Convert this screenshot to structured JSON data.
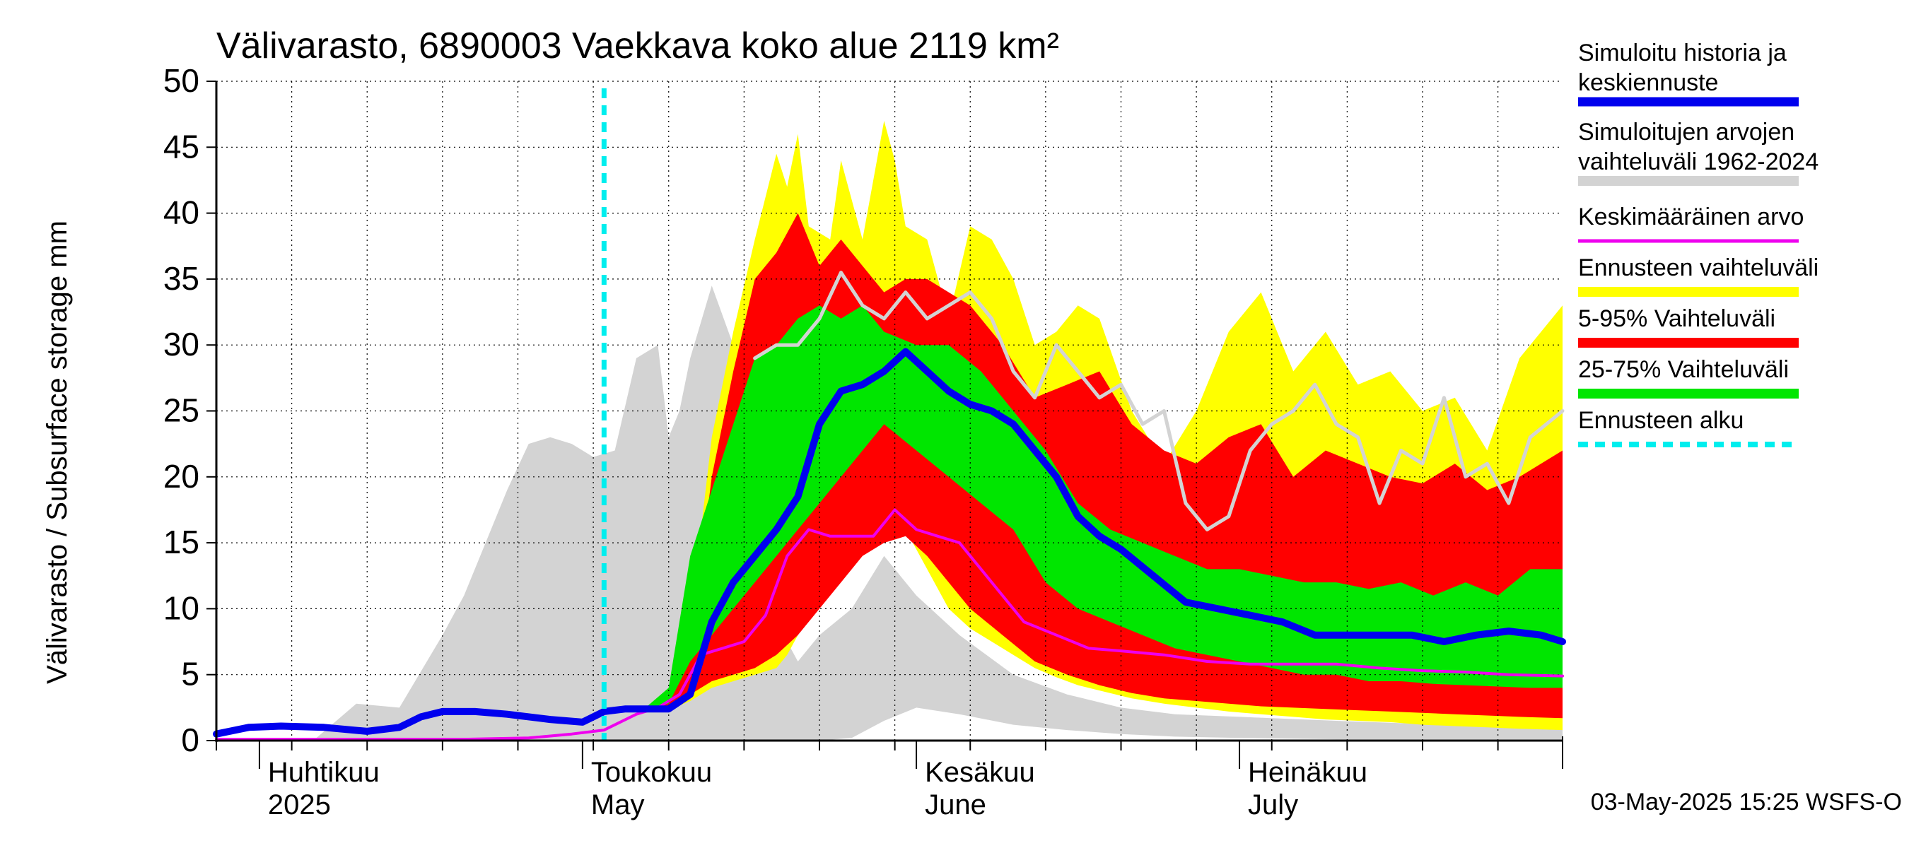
{
  "chart_data": {
    "type": "area",
    "title": "Välivarasto, 6890003 Vaekkava koko alue 2119 km²",
    "ylabel": "Välivarasto / Subsurface storage  mm",
    "xlabel": "",
    "ylim": [
      0,
      50
    ],
    "y_ticks": [
      "0",
      "5",
      "10",
      "15",
      "20",
      "25",
      "30",
      "35",
      "40",
      "45",
      "50"
    ],
    "x_range": [
      "2025-03-28",
      "2025-07-31"
    ],
    "grid": true,
    "legend_position": "right",
    "forecast_start": "2025-05-03",
    "month_labels": [
      {
        "date": "2025-04-01",
        "fi": "Huhtikuu",
        "en": "2025"
      },
      {
        "date": "2025-05-01",
        "fi": "Toukokuu",
        "en": "May"
      },
      {
        "date": "2025-06-01",
        "fi": "Kesäkuu",
        "en": "June"
      },
      {
        "date": "2025-07-01",
        "fi": "Heinäkuu",
        "en": "July"
      }
    ],
    "footer": "03-May-2025 15:25 WSFS-O",
    "colors": {
      "history_range": "#d3d3d3",
      "forecast_range": "#ffff00",
      "p5_95": "#ff0000",
      "p25_75": "#00e600",
      "median": "#0000ee",
      "mean": "#ee00ee",
      "forecast_start": "#00eeee",
      "grey_line": "#d3d3d3"
    },
    "legend": [
      {
        "label": "Simuloitu historia ja keskiennuste",
        "lines": [
          "Simuloitu historia ja",
          "keskiennuste"
        ],
        "color": "#0000ee",
        "style": "thick"
      },
      {
        "label": "Simuloitujen arvojen vaihteluväli 1962-2024",
        "lines": [
          "Simuloitujen arvojen",
          "vaihteluväli 1962-2024"
        ],
        "color": "#d3d3d3",
        "style": "band"
      },
      {
        "label": "Keskimääräinen arvo",
        "lines": [
          "Keskimääräinen arvo"
        ],
        "color": "#ee00ee",
        "style": "thin"
      },
      {
        "label": "Ennusteen vaihteluväli",
        "lines": [
          "Ennusteen vaihteluväli"
        ],
        "color": "#ffff00",
        "style": "band"
      },
      {
        "label": "5-95% Vaihteluväli",
        "lines": [
          "5-95% Vaihteluväli"
        ],
        "color": "#ff0000",
        "style": "band"
      },
      {
        "label": "25-75% Vaihteluväli",
        "lines": [
          "25-75% Vaihteluväli"
        ],
        "color": "#00e600",
        "style": "band"
      },
      {
        "label": "Ennusteen alku",
        "lines": [
          "Ennusteen alku"
        ],
        "color": "#00eeee",
        "style": "dashed"
      }
    ],
    "series": [
      {
        "key": "hist_range",
        "name": "Simuloitujen arvojen vaihteluväli 1962-2024",
        "x": [
          "2025-03-28",
          "2025-04-06",
          "2025-04-10",
          "2025-04-14",
          "2025-04-18",
          "2025-04-20",
          "2025-04-22",
          "2025-04-24",
          "2025-04-26",
          "2025-04-28",
          "2025-04-30",
          "2025-05-02",
          "2025-05-04",
          "2025-05-06",
          "2025-05-08",
          "2025-05-09",
          "2025-05-10",
          "2025-05-11",
          "2025-05-13",
          "2025-05-15",
          "2025-05-17",
          "2025-05-19",
          "2025-05-21",
          "2025-05-23",
          "2025-05-26",
          "2025-05-29",
          "2025-06-01",
          "2025-06-05",
          "2025-06-10",
          "2025-06-15",
          "2025-06-20",
          "2025-06-25",
          "2025-07-01",
          "2025-07-10",
          "2025-07-20",
          "2025-07-31"
        ],
        "low": [
          0,
          0,
          0,
          0,
          0,
          0,
          0,
          0,
          0,
          0,
          0,
          0,
          0,
          0,
          0,
          0,
          0,
          0,
          0,
          0,
          0,
          0,
          0,
          0,
          0.2,
          1.5,
          2.5,
          2.0,
          1.2,
          0.8,
          0.5,
          0.3,
          0.2,
          0.1,
          0.1,
          0.1
        ],
        "high": [
          0,
          0,
          2.8,
          2.5,
          8,
          11,
          15,
          19,
          22.5,
          23,
          22.5,
          21.5,
          22,
          29,
          30,
          23,
          25,
          29,
          34.5,
          30,
          20,
          9,
          6,
          8,
          10,
          14,
          11,
          8,
          5,
          3.5,
          2.5,
          2,
          1.8,
          1.5,
          1.2,
          1.0
        ]
      },
      {
        "key": "forecast_range",
        "name": "Ennusteen vaihteluväli",
        "x": [
          "2025-05-03",
          "2025-05-07",
          "2025-05-09",
          "2025-05-11",
          "2025-05-13",
          "2025-05-15",
          "2025-05-17",
          "2025-05-19",
          "2025-05-20",
          "2025-05-21",
          "2025-05-22",
          "2025-05-24",
          "2025-05-25",
          "2025-05-27",
          "2025-05-29",
          "2025-05-30",
          "2025-05-31",
          "2025-06-02",
          "2025-06-04",
          "2025-06-06",
          "2025-06-08",
          "2025-06-10",
          "2025-06-12",
          "2025-06-14",
          "2025-06-16",
          "2025-06-18",
          "2025-06-21",
          "2025-06-24",
          "2025-06-27",
          "2025-06-30",
          "2025-07-03",
          "2025-07-06",
          "2025-07-09",
          "2025-07-12",
          "2025-07-15",
          "2025-07-18",
          "2025-07-21",
          "2025-07-24",
          "2025-07-27",
          "2025-07-31"
        ],
        "low": [
          2.2,
          2.2,
          2.3,
          3.0,
          4.0,
          4.5,
          5.0,
          5.5,
          6.5,
          8.0,
          10,
          14,
          17,
          20,
          19,
          18,
          16,
          13,
          10,
          8.5,
          7.5,
          6.5,
          5.5,
          4.8,
          4.2,
          3.8,
          3.2,
          2.8,
          2.5,
          2.2,
          2.0,
          1.8,
          1.6,
          1.5,
          1.4,
          1.2,
          1.1,
          1.0,
          0.9,
          0.8
        ],
        "high": [
          2.2,
          2.5,
          3.0,
          9,
          23,
          31,
          38,
          44.5,
          42,
          46,
          39,
          38,
          44,
          38,
          47,
          44,
          39,
          38,
          32,
          39,
          38,
          35,
          30,
          31,
          33,
          32,
          25,
          21,
          25,
          31,
          34,
          28,
          31,
          27,
          28,
          25,
          26,
          22,
          29,
          33
        ]
      },
      {
        "key": "p5_95",
        "name": "5-95% Vaihteluväli",
        "x": [
          "2025-05-03",
          "2025-05-07",
          "2025-05-09",
          "2025-05-11",
          "2025-05-13",
          "2025-05-15",
          "2025-05-17",
          "2025-05-19",
          "2025-05-21",
          "2025-05-23",
          "2025-05-25",
          "2025-05-27",
          "2025-05-29",
          "2025-05-31",
          "2025-06-02",
          "2025-06-04",
          "2025-06-06",
          "2025-06-09",
          "2025-06-12",
          "2025-06-15",
          "2025-06-18",
          "2025-06-21",
          "2025-06-24",
          "2025-06-27",
          "2025-06-30",
          "2025-07-03",
          "2025-07-06",
          "2025-07-09",
          "2025-07-12",
          "2025-07-15",
          "2025-07-18",
          "2025-07-21",
          "2025-07-24",
          "2025-07-27",
          "2025-07-31"
        ],
        "low": [
          2.2,
          2.2,
          2.4,
          3.5,
          4.5,
          5.0,
          5.5,
          6.5,
          8.0,
          10,
          12,
          14,
          15,
          15.5,
          14,
          12,
          10,
          8,
          6,
          5,
          4.2,
          3.6,
          3.2,
          3.0,
          2.8,
          2.6,
          2.5,
          2.4,
          2.3,
          2.2,
          2.1,
          2.0,
          1.9,
          1.8,
          1.7
        ],
        "high": [
          2.2,
          2.4,
          3.0,
          7,
          20,
          28,
          35,
          37,
          40,
          36,
          38,
          36,
          34,
          35,
          35,
          34,
          33,
          30,
          26,
          27,
          28,
          24,
          22,
          21,
          23,
          24,
          20,
          22,
          21,
          20,
          19.5,
          21,
          19,
          20,
          22
        ]
      },
      {
        "key": "p25_75",
        "name": "25-75% Vaihteluväli",
        "x": [
          "2025-05-03",
          "2025-05-07",
          "2025-05-09",
          "2025-05-11",
          "2025-05-13",
          "2025-05-15",
          "2025-05-17",
          "2025-05-19",
          "2025-05-21",
          "2025-05-23",
          "2025-05-25",
          "2025-05-27",
          "2025-05-29",
          "2025-06-01",
          "2025-06-04",
          "2025-06-07",
          "2025-06-10",
          "2025-06-13",
          "2025-06-16",
          "2025-06-19",
          "2025-06-22",
          "2025-06-25",
          "2025-06-28",
          "2025-07-01",
          "2025-07-04",
          "2025-07-07",
          "2025-07-10",
          "2025-07-13",
          "2025-07-16",
          "2025-07-19",
          "2025-07-22",
          "2025-07-25",
          "2025-07-28",
          "2025-07-31"
        ],
        "low": [
          2.2,
          2.3,
          2.8,
          6,
          8,
          10,
          12,
          14,
          16,
          18,
          20,
          22,
          24,
          22,
          20,
          18,
          16,
          12,
          10,
          9,
          8,
          7,
          6.5,
          6,
          5.5,
          5,
          5,
          4.5,
          4.5,
          4.3,
          4.2,
          4.1,
          4,
          4
        ],
        "high": [
          2.2,
          2.6,
          4,
          14,
          19,
          24,
          29,
          30,
          32,
          33,
          32,
          33,
          31,
          30,
          30,
          28,
          25,
          22,
          18,
          16,
          15,
          14,
          13,
          13,
          12.5,
          12,
          12,
          11.5,
          12,
          11,
          12,
          11,
          13,
          13
        ]
      },
      {
        "key": "median",
        "name": "Simuloitu historia ja keskiennuste",
        "x": [
          "2025-03-28",
          "2025-03-31",
          "2025-04-03",
          "2025-04-07",
          "2025-04-11",
          "2025-04-14",
          "2025-04-16",
          "2025-04-18",
          "2025-04-21",
          "2025-04-24",
          "2025-04-28",
          "2025-05-01",
          "2025-05-03",
          "2025-05-05",
          "2025-05-07",
          "2025-05-09",
          "2025-05-11",
          "2025-05-13",
          "2025-05-15",
          "2025-05-17",
          "2025-05-19",
          "2025-05-21",
          "2025-05-23",
          "2025-05-25",
          "2025-05-27",
          "2025-05-29",
          "2025-05-31",
          "2025-06-02",
          "2025-06-04",
          "2025-06-06",
          "2025-06-08",
          "2025-06-10",
          "2025-06-12",
          "2025-06-14",
          "2025-06-16",
          "2025-06-18",
          "2025-06-20",
          "2025-06-23",
          "2025-06-26",
          "2025-06-29",
          "2025-07-02",
          "2025-07-05",
          "2025-07-08",
          "2025-07-11",
          "2025-07-14",
          "2025-07-17",
          "2025-07-20",
          "2025-07-23",
          "2025-07-26",
          "2025-07-29",
          "2025-07-31"
        ],
        "y": [
          0.5,
          1.0,
          1.1,
          1.0,
          0.7,
          1.0,
          1.8,
          2.2,
          2.2,
          2.0,
          1.6,
          1.4,
          2.2,
          2.4,
          2.4,
          2.4,
          3.5,
          9,
          12,
          14,
          16,
          18.5,
          24,
          26.5,
          27,
          28,
          29.5,
          28,
          26.5,
          25.5,
          25,
          24,
          22,
          20,
          17,
          15.5,
          14.5,
          12.5,
          10.5,
          10,
          9.5,
          9,
          8,
          8,
          8,
          8,
          7.5,
          8,
          8.3,
          8,
          7.5
        ]
      },
      {
        "key": "mean",
        "name": "Keskimääräinen arvo",
        "x": [
          "2025-03-28",
          "2025-04-10",
          "2025-04-20",
          "2025-04-26",
          "2025-04-30",
          "2025-05-03",
          "2025-05-06",
          "2025-05-08",
          "2025-05-10",
          "2025-05-12",
          "2025-05-14",
          "2025-05-16",
          "2025-05-18",
          "2025-05-20",
          "2025-05-22",
          "2025-05-24",
          "2025-05-26",
          "2025-05-28",
          "2025-05-30",
          "2025-06-01",
          "2025-06-03",
          "2025-06-05",
          "2025-06-08",
          "2025-06-11",
          "2025-06-14",
          "2025-06-17",
          "2025-06-20",
          "2025-06-24",
          "2025-06-28",
          "2025-07-02",
          "2025-07-06",
          "2025-07-10",
          "2025-07-14",
          "2025-07-18",
          "2025-07-22",
          "2025-07-26",
          "2025-07-31"
        ],
        "y": [
          0.1,
          0.1,
          0.1,
          0.2,
          0.5,
          0.8,
          2.0,
          2.5,
          3.5,
          6.5,
          7.0,
          7.5,
          9.5,
          14,
          16,
          15.5,
          15.5,
          15.5,
          17.5,
          16,
          15.5,
          15,
          12,
          9,
          8,
          7,
          6.8,
          6.5,
          6,
          5.8,
          5.8,
          5.8,
          5.5,
          5.3,
          5.2,
          5.0,
          4.9
        ]
      },
      {
        "key": "grey_line",
        "name": "",
        "x": [
          "2025-05-17",
          "2025-05-19",
          "2025-05-21",
          "2025-05-23",
          "2025-05-25",
          "2025-05-27",
          "2025-05-29",
          "2025-05-31",
          "2025-06-02",
          "2025-06-04",
          "2025-06-06",
          "2025-06-08",
          "2025-06-10",
          "2025-06-12",
          "2025-06-14",
          "2025-06-16",
          "2025-06-18",
          "2025-06-20",
          "2025-06-22",
          "2025-06-24",
          "2025-06-26",
          "2025-06-28",
          "2025-06-30",
          "2025-07-02",
          "2025-07-04",
          "2025-07-06",
          "2025-07-08",
          "2025-07-10",
          "2025-07-12",
          "2025-07-14",
          "2025-07-16",
          "2025-07-18",
          "2025-07-20",
          "2025-07-22",
          "2025-07-24",
          "2025-07-26",
          "2025-07-28",
          "2025-07-31"
        ],
        "y": [
          29,
          30,
          30,
          32,
          35.5,
          33,
          32,
          34,
          32,
          33,
          34,
          32,
          28,
          26,
          30,
          28,
          26,
          27,
          24,
          25,
          18,
          16,
          17,
          22,
          24,
          25,
          27,
          24,
          23,
          18,
          22,
          21,
          26,
          20,
          21,
          18,
          23,
          25
        ]
      }
    ]
  }
}
